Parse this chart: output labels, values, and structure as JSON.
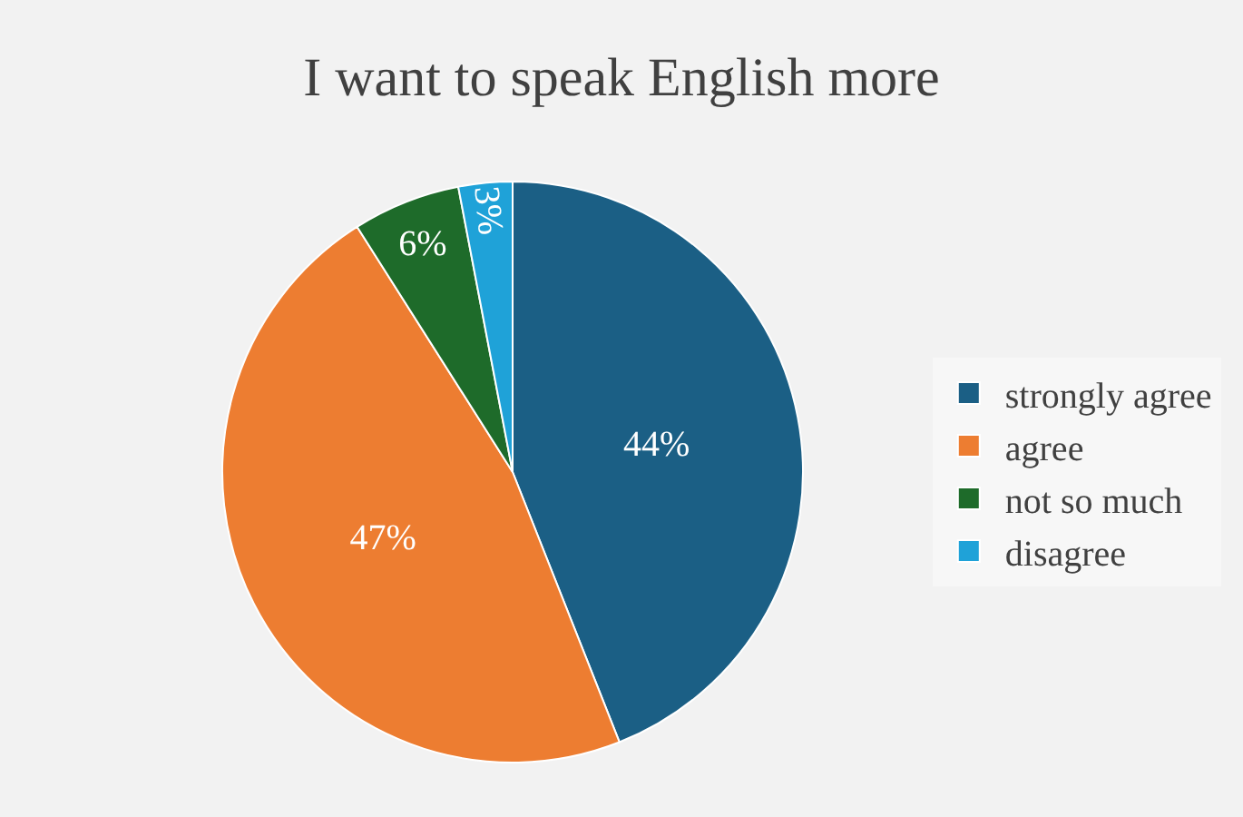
{
  "chart_data": {
    "type": "pie",
    "title": "I want to speak English more",
    "categories": [
      "strongly agree",
      "agree",
      "not so much",
      "disagree"
    ],
    "values": [
      44,
      47,
      6,
      3
    ],
    "colors": [
      "#1b5f85",
      "#ed7d31",
      "#1e6b2a",
      "#1fa2d8"
    ],
    "value_labels": [
      "44%",
      "47%",
      "6%",
      "3%"
    ],
    "legend": "right"
  }
}
